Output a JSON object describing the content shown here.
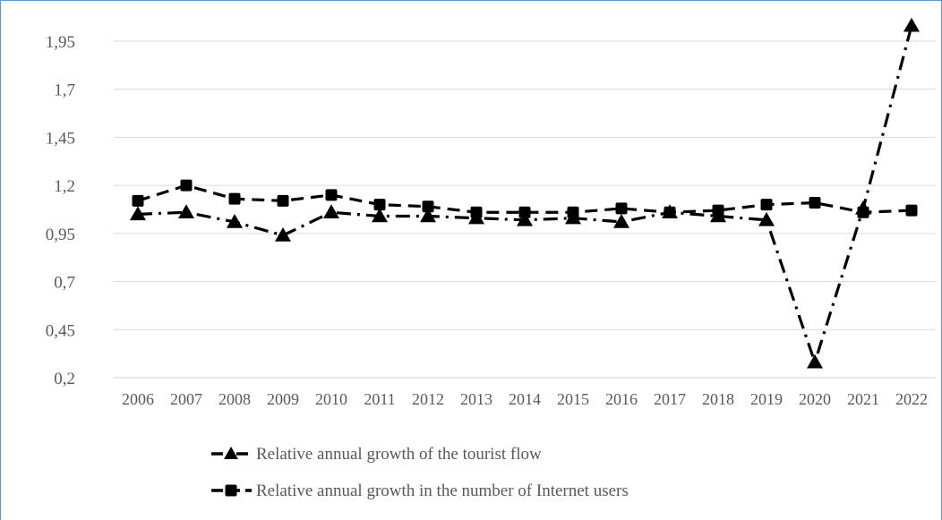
{
  "chart_data": {
    "type": "line",
    "title": "",
    "xlabel": "",
    "ylabel": "",
    "categories": [
      "2006",
      "2007",
      "2008",
      "2009",
      "2010",
      "2011",
      "2012",
      "2013",
      "2014",
      "2015",
      "2016",
      "2017",
      "2018",
      "2019",
      "2020",
      "2021",
      "2022"
    ],
    "y_ticks": [
      "1,95",
      "1,7",
      "1,45",
      "1,2",
      "0,95",
      "0,7",
      "0,45",
      "0,2"
    ],
    "y_tick_values": [
      1.95,
      1.7,
      1.45,
      1.2,
      0.95,
      0.7,
      0.45,
      0.2
    ],
    "ylim": [
      0.2,
      2.05
    ],
    "grid": true,
    "legend_position": "bottom",
    "series": [
      {
        "name": "Relative annual growth of the tourist flow",
        "marker": "triangle",
        "line_style": "dash-dot",
        "color": "#000000",
        "values": [
          1.05,
          1.06,
          1.01,
          0.94,
          1.06,
          1.04,
          1.04,
          1.03,
          1.02,
          1.03,
          1.01,
          1.06,
          1.04,
          1.02,
          0.28,
          1.08,
          2.03
        ]
      },
      {
        "name": "Relative annual growth in the number of Internet users",
        "marker": "square",
        "line_style": "dashed",
        "color": "#000000",
        "values": [
          1.12,
          1.2,
          1.13,
          1.12,
          1.15,
          1.1,
          1.09,
          1.06,
          1.06,
          1.06,
          1.08,
          1.06,
          1.07,
          1.1,
          1.11,
          1.06,
          1.07
        ]
      }
    ]
  }
}
